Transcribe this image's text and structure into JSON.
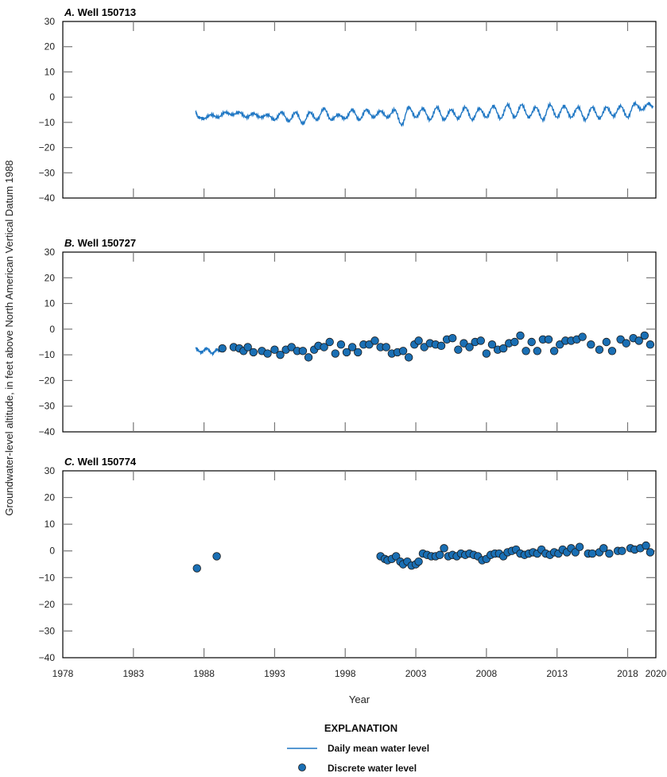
{
  "chart_data": [
    {
      "type": "line",
      "panel": "A.",
      "title": "Well 150713",
      "xlabel": "Year",
      "ylabel": "Groundwater-level altitude, in feet above North American Vertical Datum 1988",
      "xlim": [
        1978,
        2020
      ],
      "ylim": [
        -40,
        30
      ],
      "xticks": [
        1978,
        1983,
        1988,
        1993,
        1998,
        2003,
        2008,
        2013,
        2018,
        2020
      ],
      "yticks": [
        30,
        20,
        10,
        0,
        -10,
        -20,
        -30,
        -40
      ],
      "grid": false,
      "series": [
        {
          "name": "Daily mean water level",
          "kind": "line",
          "x": [
            1987.4,
            1987.6,
            1988.0,
            1988.5,
            1989.0,
            1989.5,
            1990.0,
            1990.5,
            1991.0,
            1991.5,
            1992.0,
            1992.5,
            1993.0,
            1993.5,
            1994.0,
            1994.5,
            1995.0,
            1995.5,
            1996.0,
            1996.5,
            1997.0,
            1997.5,
            1998.0,
            1998.5,
            1999.0,
            1999.5,
            2000.0,
            2000.5,
            2001.0,
            2001.5,
            2002.0,
            2002.5,
            2003.0,
            2003.5,
            2004.0,
            2004.5,
            2005.0,
            2005.5,
            2006.0,
            2006.5,
            2007.0,
            2007.5,
            2008.0,
            2008.5,
            2009.0,
            2009.5,
            2010.0,
            2010.5,
            2011.0,
            2011.5,
            2012.0,
            2012.5,
            2013.0,
            2013.5,
            2014.0,
            2014.5,
            2015.0,
            2015.5,
            2016.0,
            2016.5,
            2017.0,
            2017.5,
            2018.0,
            2018.5,
            2019.0,
            2019.5,
            2019.8
          ],
          "y": [
            -6,
            -8,
            -8.5,
            -7,
            -8,
            -6,
            -7,
            -6,
            -8,
            -6.5,
            -8,
            -7,
            -9,
            -6,
            -9.5,
            -6,
            -10.5,
            -6,
            -9,
            -4.5,
            -9,
            -7,
            -8.5,
            -5,
            -9,
            -5,
            -8,
            -5.5,
            -8,
            -5,
            -11,
            -4,
            -8,
            -4.5,
            -9,
            -4,
            -9,
            -5,
            -8.5,
            -4,
            -9,
            -4.5,
            -8,
            -3.5,
            -8.5,
            -3,
            -8,
            -3,
            -8,
            -4,
            -9,
            -3,
            -8,
            -3.5,
            -8,
            -4,
            -9,
            -4,
            -8.5,
            -4,
            -7.5,
            -3.5,
            -8,
            -2.5,
            -5,
            -2.5,
            -4
          ]
        }
      ]
    },
    {
      "type": "scatter",
      "panel": "B.",
      "title": "Well 150727",
      "xlabel": "Year",
      "xlim": [
        1978,
        2020
      ],
      "ylim": [
        -40,
        30
      ],
      "series": [
        {
          "name": "Daily mean water level",
          "kind": "line",
          "x": [
            1987.4,
            1987.8,
            1988.2,
            1988.6,
            1988.9,
            1989.2
          ],
          "y": [
            -7.5,
            -9,
            -7.5,
            -9.5,
            -8,
            -8.5
          ]
        },
        {
          "name": "Discrete water level",
          "kind": "points",
          "x": [
            1989.3,
            1990.1,
            1990.5,
            1990.8,
            1991.1,
            1991.5,
            1992.1,
            1992.5,
            1993.0,
            1993.4,
            1993.8,
            1994.2,
            1994.6,
            1995.0,
            1995.4,
            1995.8,
            1996.1,
            1996.5,
            1996.9,
            1997.3,
            1997.7,
            1998.1,
            1998.5,
            1998.9,
            1999.3,
            1999.7,
            2000.1,
            2000.5,
            2000.9,
            2001.3,
            2001.7,
            2002.1,
            2002.5,
            2002.9,
            2003.2,
            2003.6,
            2004.0,
            2004.4,
            2004.8,
            2005.2,
            2005.6,
            2006.0,
            2006.4,
            2006.8,
            2007.2,
            2007.6,
            2008.0,
            2008.4,
            2008.8,
            2009.2,
            2009.6,
            2010.0,
            2010.4,
            2010.8,
            2011.2,
            2011.6,
            2012.0,
            2012.4,
            2012.8,
            2013.2,
            2013.6,
            2014.0,
            2014.4,
            2014.8,
            2015.4,
            2016.0,
            2016.5,
            2016.9,
            2017.5,
            2017.9,
            2018.4,
            2018.8,
            2019.2,
            2019.6
          ],
          "y": [
            -7.5,
            -7,
            -7.5,
            -8.5,
            -7,
            -9,
            -8.5,
            -9.5,
            -8,
            -10,
            -8,
            -7,
            -8.5,
            -8.5,
            -11,
            -8,
            -6.5,
            -7,
            -5,
            -9.5,
            -6,
            -9,
            -7,
            -9,
            -6,
            -6,
            -4.5,
            -7,
            -7,
            -9.5,
            -9,
            -8.5,
            -11,
            -6,
            -4.5,
            -7,
            -5.5,
            -6,
            -6.5,
            -4,
            -3.5,
            -8,
            -5.5,
            -7,
            -5,
            -4.5,
            -9.5,
            -6,
            -8,
            -7.5,
            -5.5,
            -5,
            -2.5,
            -8.5,
            -5,
            -8.5,
            -4,
            -4,
            -8.5,
            -6,
            -4.5,
            -4.5,
            -4,
            -3,
            -6,
            -8,
            -5,
            -8.5,
            -4,
            -5.5,
            -3.5,
            -4.5,
            -2.5,
            -6
          ]
        }
      ]
    },
    {
      "type": "scatter",
      "panel": "C.",
      "title": "Well 150774",
      "xlabel": "Year",
      "xlim": [
        1978,
        2020
      ],
      "ylim": [
        -40,
        30
      ],
      "series": [
        {
          "name": "Discrete water level",
          "kind": "points",
          "x": [
            1987.5,
            1988.9,
            2000.5,
            2000.8,
            2001.0,
            2001.3,
            2001.6,
            2001.9,
            2002.1,
            2002.4,
            2002.7,
            2003.0,
            2003.2,
            2003.5,
            2003.8,
            2004.1,
            2004.4,
            2004.7,
            2005.0,
            2005.3,
            2005.6,
            2005.9,
            2006.2,
            2006.5,
            2006.8,
            2007.1,
            2007.4,
            2007.7,
            2008.0,
            2008.3,
            2008.6,
            2008.9,
            2009.2,
            2009.5,
            2009.8,
            2010.1,
            2010.4,
            2010.7,
            2011.0,
            2011.3,
            2011.6,
            2011.9,
            2012.2,
            2012.5,
            2012.8,
            2013.1,
            2013.4,
            2013.7,
            2014.0,
            2014.3,
            2014.6,
            2015.2,
            2015.5,
            2016.0,
            2016.3,
            2016.7,
            2017.3,
            2017.6,
            2018.2,
            2018.5,
            2018.9,
            2019.3,
            2019.6
          ],
          "y": [
            -6.5,
            -2,
            -2,
            -3,
            -3.5,
            -3,
            -2,
            -4,
            -5,
            -4,
            -5.5,
            -5,
            -4,
            -1,
            -1.5,
            -2,
            -2,
            -1.5,
            1,
            -2,
            -1.5,
            -2,
            -1,
            -1.5,
            -1,
            -1.5,
            -2,
            -3.5,
            -3,
            -1.5,
            -1,
            -1,
            -2,
            -0.5,
            0,
            0.5,
            -1,
            -1.5,
            -1,
            -0.5,
            -1,
            0.5,
            -1,
            -1.5,
            -0.5,
            -1,
            0.5,
            -0.5,
            1,
            -0.5,
            1.5,
            -1,
            -1,
            -0.5,
            1,
            -1,
            0,
            0,
            1,
            0.5,
            1,
            2,
            -0.5
          ]
        }
      ]
    }
  ],
  "figure": {
    "ylabel": "Groundwater-level altitude, in feet above North American Vertical Datum 1988",
    "xlabel": "Year",
    "panels": [
      {
        "letter": "A.",
        "title": "Well 150713"
      },
      {
        "letter": "B.",
        "title": "Well 150727"
      },
      {
        "letter": "C.",
        "title": "Well 150774"
      }
    ],
    "legend": {
      "title": "EXPLANATION",
      "line_label": "Daily mean water level",
      "point_label": "Discrete water level"
    },
    "colors": {
      "line": "#1f77c4",
      "point_fill": "#1a6fb4",
      "point_edge": "#1a1a1a",
      "axis": "#000000",
      "tick": "#777777"
    }
  }
}
